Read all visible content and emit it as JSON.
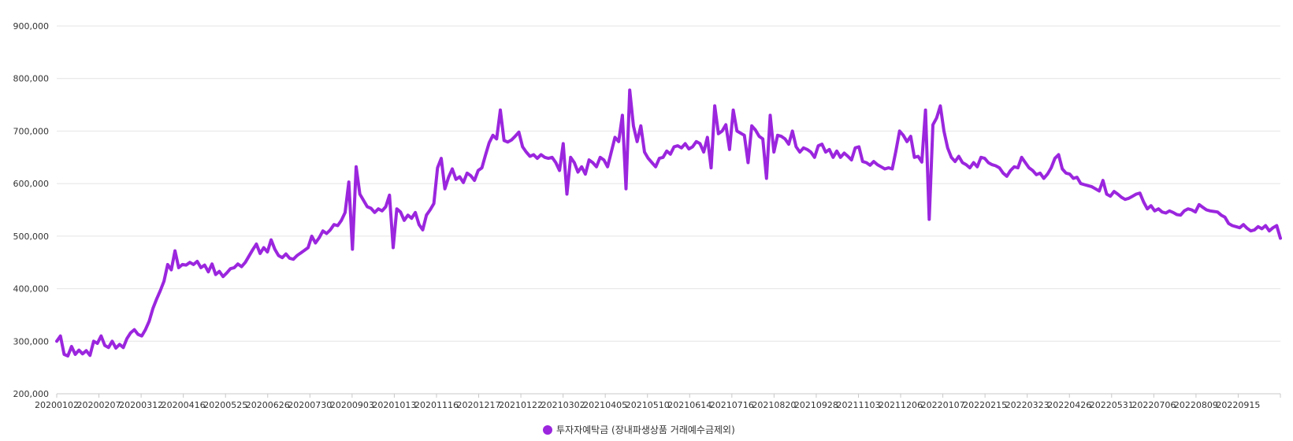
{
  "chart_data": {
    "type": "line",
    "title": "",
    "xlabel": "",
    "ylabel": "",
    "ylim": [
      200000,
      900000
    ],
    "ytick_values": [
      200000,
      300000,
      400000,
      500000,
      600000,
      700000,
      800000,
      900000
    ],
    "ytick_labels": [
      "200,000",
      "300,000",
      "400,000",
      "500,000",
      "600,000",
      "700,000",
      "800,000",
      "900,000"
    ],
    "grid": true,
    "legend_position": "bottom",
    "x_tick_labels": [
      "20200102",
      "20200207",
      "20200312",
      "20200416",
      "20200525",
      "20200626",
      "20200730",
      "20200903",
      "20201013",
      "20201116",
      "20201217",
      "20210122",
      "20210302",
      "20210405",
      "20210510",
      "20210614",
      "20210716",
      "20210820",
      "20210928",
      "20211103",
      "20211206",
      "20220107",
      "20220215",
      "20220323",
      "20220426",
      "20220531",
      "20220706",
      "20220809",
      "20220915"
    ],
    "series": [
      {
        "name": "투자자예탁금 (장내파생상품 거래예수금제외)",
        "color": "#9b26de",
        "values": [
          300000,
          310000,
          275000,
          272000,
          290000,
          275000,
          283000,
          276000,
          282000,
          273000,
          300000,
          296000,
          310000,
          292000,
          288000,
          300000,
          287000,
          294000,
          288000,
          305000,
          316000,
          322000,
          313000,
          310000,
          322000,
          338000,
          362000,
          380000,
          396000,
          414000,
          446000,
          436000,
          472000,
          440000,
          446000,
          445000,
          450000,
          446000,
          452000,
          440000,
          445000,
          432000,
          447000,
          427000,
          433000,
          423000,
          430000,
          438000,
          440000,
          447000,
          442000,
          450000,
          462000,
          474000,
          485000,
          467000,
          478000,
          470000,
          493000,
          475000,
          463000,
          459000,
          466000,
          458000,
          456000,
          463000,
          468000,
          473000,
          478000,
          500000,
          487000,
          497000,
          510000,
          505000,
          512000,
          522000,
          520000,
          530000,
          545000,
          603000,
          475000,
          632000,
          580000,
          568000,
          556000,
          553000,
          545000,
          552000,
          548000,
          556000,
          578000,
          478000,
          552000,
          546000,
          530000,
          540000,
          534000,
          545000,
          522000,
          512000,
          540000,
          550000,
          562000,
          630000,
          648000,
          590000,
          612000,
          628000,
          608000,
          613000,
          602000,
          620000,
          615000,
          606000,
          625000,
          630000,
          655000,
          678000,
          692000,
          685000,
          740000,
          682000,
          679000,
          683000,
          690000,
          698000,
          670000,
          660000,
          652000,
          655000,
          648000,
          655000,
          650000,
          648000,
          650000,
          640000,
          625000,
          676000,
          580000,
          650000,
          640000,
          622000,
          632000,
          618000,
          645000,
          640000,
          632000,
          650000,
          645000,
          632000,
          660000,
          688000,
          680000,
          730000,
          590000,
          778000,
          710000,
          680000,
          710000,
          660000,
          648000,
          640000,
          632000,
          648000,
          650000,
          662000,
          656000,
          670000,
          672000,
          668000,
          676000,
          666000,
          670000,
          680000,
          676000,
          660000,
          688000,
          630000,
          748000,
          695000,
          700000,
          712000,
          665000,
          740000,
          700000,
          696000,
          692000,
          640000,
          710000,
          702000,
          690000,
          685000,
          610000,
          730000,
          660000,
          692000,
          690000,
          685000,
          675000,
          700000,
          670000,
          660000,
          668000,
          665000,
          660000,
          650000,
          672000,
          675000,
          660000,
          665000,
          650000,
          662000,
          650000,
          658000,
          652000,
          645000,
          668000,
          670000,
          642000,
          640000,
          635000,
          642000,
          636000,
          632000,
          628000,
          630000,
          628000,
          662000,
          700000,
          692000,
          680000,
          690000,
          650000,
          652000,
          641000,
          740000,
          532000,
          712000,
          725000,
          748000,
          700000,
          668000,
          650000,
          642000,
          652000,
          640000,
          636000,
          630000,
          640000,
          632000,
          650000,
          648000,
          640000,
          636000,
          634000,
          630000,
          620000,
          614000,
          625000,
          632000,
          630000,
          650000,
          640000,
          630000,
          625000,
          617000,
          620000,
          610000,
          618000,
          630000,
          648000,
          655000,
          628000,
          620000,
          618000,
          610000,
          612000,
          600000,
          598000,
          596000,
          594000,
          590000,
          586000,
          606000,
          580000,
          576000,
          585000,
          580000,
          574000,
          570000,
          572000,
          576000,
          580000,
          582000,
          565000,
          552000,
          558000,
          548000,
          552000,
          546000,
          544000,
          548000,
          545000,
          541000,
          540000,
          548000,
          552000,
          550000,
          546000,
          560000,
          555000,
          550000,
          548000,
          547000,
          546000,
          540000,
          536000,
          524000,
          520000,
          518000,
          516000,
          522000,
          515000,
          510000,
          512000,
          518000,
          514000,
          520000,
          510000,
          516000,
          520000,
          496000
        ]
      }
    ]
  }
}
